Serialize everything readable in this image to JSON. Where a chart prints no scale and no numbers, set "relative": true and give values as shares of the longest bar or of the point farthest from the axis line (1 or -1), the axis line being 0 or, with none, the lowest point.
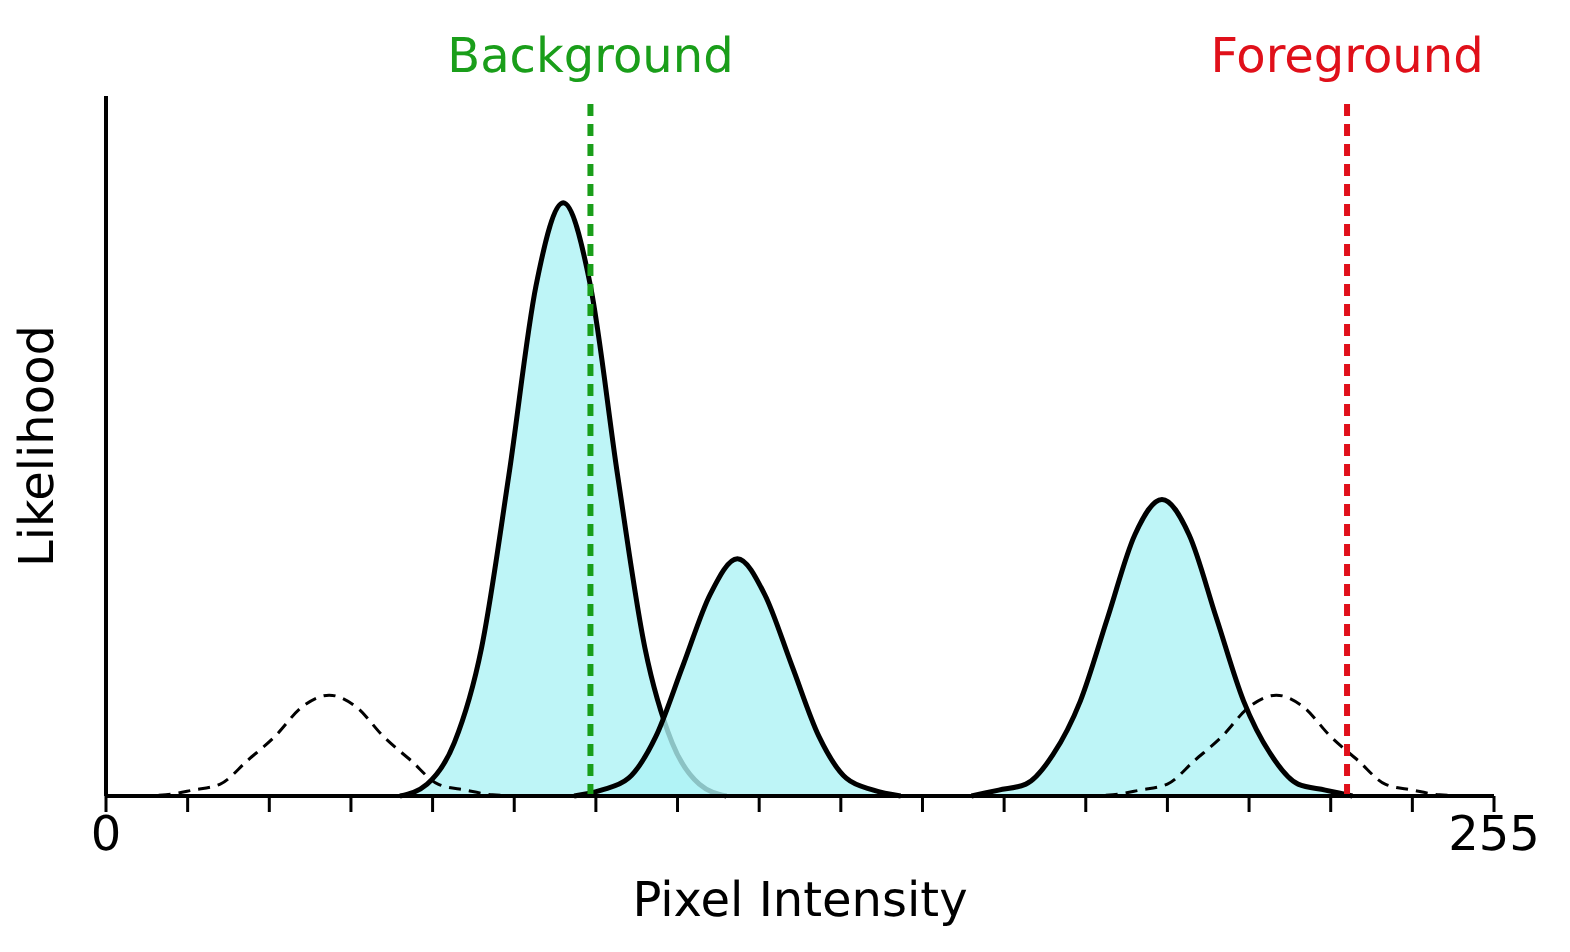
{
  "chart_data": {
    "type": "area",
    "relative": true,
    "xlabel": "Pixel Intensity",
    "ylabel": "Likelihood",
    "xlim": [
      0,
      255
    ],
    "xticks": [
      0,
      {
        "value": 15,
        "label": null
      },
      {
        "value": 30,
        "label": null
      },
      {
        "value": 45,
        "label": null
      },
      {
        "value": 60,
        "label": null
      },
      {
        "value": 75,
        "label": null
      },
      {
        "value": 90,
        "label": null
      },
      {
        "value": 105,
        "label": null
      },
      {
        "value": 120,
        "label": null
      },
      {
        "value": 135,
        "label": null
      },
      {
        "value": 150,
        "label": null
      },
      {
        "value": 165,
        "label": null
      },
      {
        "value": 180,
        "label": null
      },
      {
        "value": 195,
        "label": null
      },
      {
        "value": 210,
        "label": null
      },
      {
        "value": 225,
        "label": null
      },
      {
        "value": 240,
        "label": null
      },
      255
    ],
    "marker": "none",
    "series": [
      {
        "type": "line",
        "line_style": "dashed",
        "color": "#000000",
        "x": [
          6,
          11,
          16,
          21,
          26,
          31,
          36,
          41,
          46,
          51,
          56,
          61,
          66,
          71,
          76
        ],
        "values": [
          0,
          0.002,
          0.01,
          0.02,
          0.06,
          0.1,
          0.15,
          0.17,
          0.15,
          0.1,
          0.06,
          0.02,
          0.01,
          0.002,
          0
        ]
      },
      {
        "type": "line",
        "line_style": "dashed",
        "color": "#000000",
        "x": [
          180,
          185,
          190,
          195,
          200,
          205,
          210,
          215,
          220,
          225,
          230,
          235,
          240,
          245,
          250
        ],
        "values": [
          0,
          0.002,
          0.01,
          0.02,
          0.06,
          0.1,
          0.15,
          0.17,
          0.15,
          0.1,
          0.06,
          0.02,
          0.01,
          0.002,
          0
        ]
      },
      {
        "type": "area",
        "color": "#aef2f5",
        "x": [
          54,
          59,
          64,
          69,
          74,
          79,
          84,
          89,
          94,
          99,
          104,
          109,
          114
        ],
        "values": [
          0,
          0.02,
          0.09,
          0.25,
          0.54,
          0.86,
          1,
          0.86,
          0.54,
          0.25,
          0.09,
          0.02,
          0
        ]
      },
      {
        "type": "area",
        "color": "#aef2f5",
        "x": [
          86,
          91,
          96,
          101,
          106,
          111,
          116,
          121,
          126,
          131,
          136,
          141,
          146
        ],
        "values": [
          0,
          0.01,
          0.03,
          0.1,
          0.22,
          0.34,
          0.4,
          0.34,
          0.22,
          0.1,
          0.03,
          0.01,
          0
        ]
      },
      {
        "type": "area",
        "color": "#aef2f5",
        "x": [
          159,
          164,
          169,
          174,
          179,
          184,
          189,
          194,
          199,
          204,
          209,
          214,
          219,
          224,
          229
        ],
        "values": [
          0,
          0.01,
          0.02,
          0.07,
          0.16,
          0.3,
          0.44,
          0.5,
          0.44,
          0.3,
          0.16,
          0.07,
          0.02,
          0.01,
          0
        ]
      }
    ],
    "ref_lines": [
      {
        "axis": "x",
        "value": 89,
        "label": "Background",
        "color": "#1a9e1a",
        "line_style": "dashed"
      },
      {
        "axis": "x",
        "value": 228,
        "label": "Foreground",
        "color": "#e0101a",
        "line_style": "dashed"
      }
    ]
  }
}
